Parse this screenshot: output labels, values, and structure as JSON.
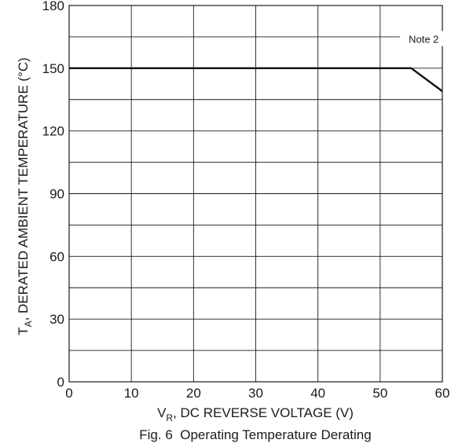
{
  "chart_data": {
    "type": "line",
    "title": "",
    "caption": "Fig. 6  Operating Temperature Derating",
    "xlabel": {
      "main": "V",
      "sub": "R",
      "rest": ", DC REVERSE VOLTAGE (V)"
    },
    "ylabel": {
      "main": "T",
      "sub": "A",
      "rest": ", DERATED AMBIENT TEMPERATURE (°C)"
    },
    "xlim": [
      0,
      60
    ],
    "ylim": [
      0,
      180
    ],
    "xticks": [
      "0",
      "10",
      "20",
      "30",
      "40",
      "50",
      "60"
    ],
    "yticks": [
      "0",
      "30",
      "60",
      "90",
      "120",
      "150",
      "180"
    ],
    "grid": true,
    "minor_y_grid_step": 15,
    "series": [
      {
        "x": [
          0,
          55,
          60
        ],
        "y": [
          150,
          150,
          139
        ]
      }
    ],
    "annotations": [
      {
        "text": "Note 2",
        "x": 57,
        "y": 164
      }
    ]
  }
}
